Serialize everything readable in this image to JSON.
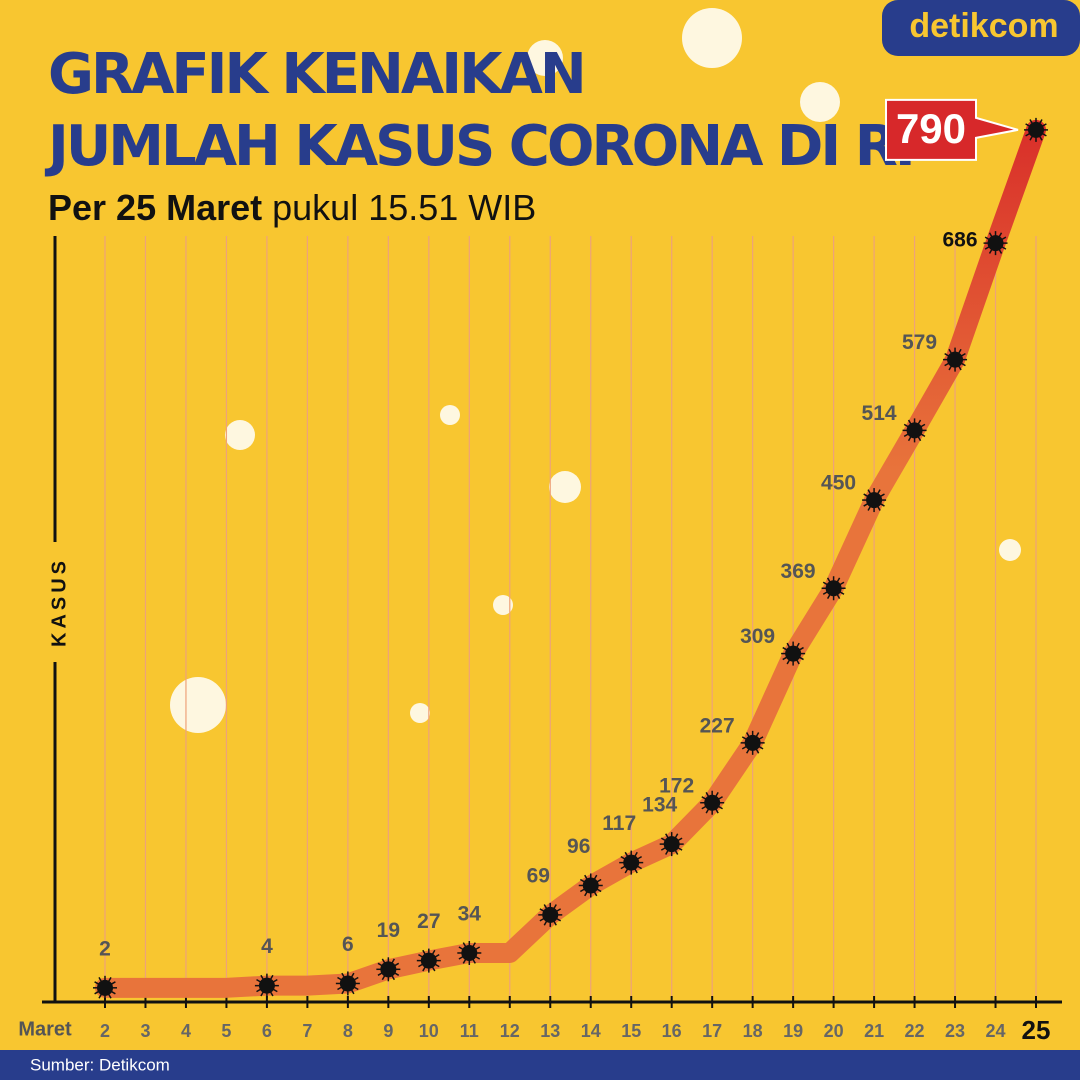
{
  "brand": "detikcom",
  "source": "Sumber: Detikcom",
  "chart_data": {
    "type": "line",
    "title_line1": "GRAFIK KENAIKAN",
    "title_line2": "JUMLAH KASUS CORONA DI RI",
    "subtitle_bold": "Per 25 Maret",
    "subtitle_rest": "pukul 15.51 WIB",
    "y_label": "KASUS",
    "x_label": "Maret",
    "categories": [
      "2",
      "3",
      "4",
      "5",
      "6",
      "7",
      "8",
      "9",
      "10",
      "11",
      "12",
      "13",
      "14",
      "15",
      "16",
      "17",
      "18",
      "19",
      "20",
      "21",
      "22",
      "23",
      "24",
      "25"
    ],
    "values": [
      2,
      2,
      2,
      2,
      4,
      4,
      6,
      19,
      27,
      34,
      34,
      69,
      96,
      117,
      134,
      172,
      227,
      309,
      369,
      450,
      514,
      579,
      686,
      790
    ],
    "value_labels": [
      "2",
      null,
      null,
      null,
      "4",
      null,
      "6",
      "19",
      "27",
      "34",
      null,
      "69",
      "96",
      "117",
      "134",
      "172",
      "227",
      "309",
      "369",
      "450",
      "514",
      "579",
      "686",
      "790"
    ],
    "ylim": [
      0,
      800
    ],
    "color": "#e8743b",
    "grid": true
  }
}
